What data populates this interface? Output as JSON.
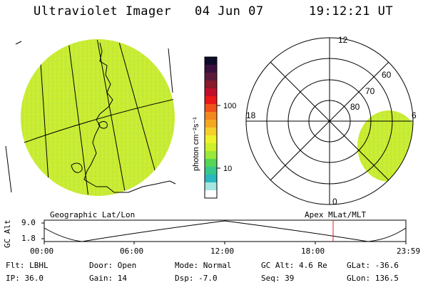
{
  "header": {
    "title": "Ultraviolet Imager",
    "date": "04 Jun 07",
    "time": "19:12:21 UT"
  },
  "colorbar": {
    "unit_label": "photon cm⁻²s⁻¹",
    "ticks": [
      "100",
      "10"
    ],
    "colors": [
      "#0d0d2a",
      "#3a1040",
      "#5b1a3c",
      "#8b1a2a",
      "#c2102a",
      "#ea1818",
      "#f0521a",
      "#f3861c",
      "#f5a81f",
      "#f3d02a",
      "#eef22a",
      "#cdf02a",
      "#99e83a",
      "#55d657",
      "#38c78d",
      "#2ab8c0",
      "#a4e6e0",
      "#ffffff"
    ]
  },
  "left_map": {
    "label": "Geographic Lat/Lon",
    "fill_color": "#c7ec35"
  },
  "right_map": {
    "label": "Apex MLat/MLT",
    "mlt_labels": [
      "12",
      "18",
      "6",
      "0"
    ],
    "lat_labels": [
      "60",
      "70",
      "80"
    ]
  },
  "timeline": {
    "axis_label": "GC Alt",
    "y_ticks": [
      "9.0",
      "1.8"
    ],
    "x_ticks": [
      "00:00",
      "06:00",
      "12:00",
      "18:00",
      "23:59"
    ],
    "marker_color": "#e02020"
  },
  "params": {
    "flt": "Flt: LBHL",
    "ip": "IP: 36.0",
    "door": "Door: Open",
    "gain": "Gain: 14",
    "mode": "Mode: Normal",
    "dsp": "Dsp:   -7.0",
    "gc_alt": "GC Alt: 4.6 Re",
    "seq": "Seq: 39",
    "glat": "GLat: -36.6",
    "glon": "GLon: 136.5"
  }
}
